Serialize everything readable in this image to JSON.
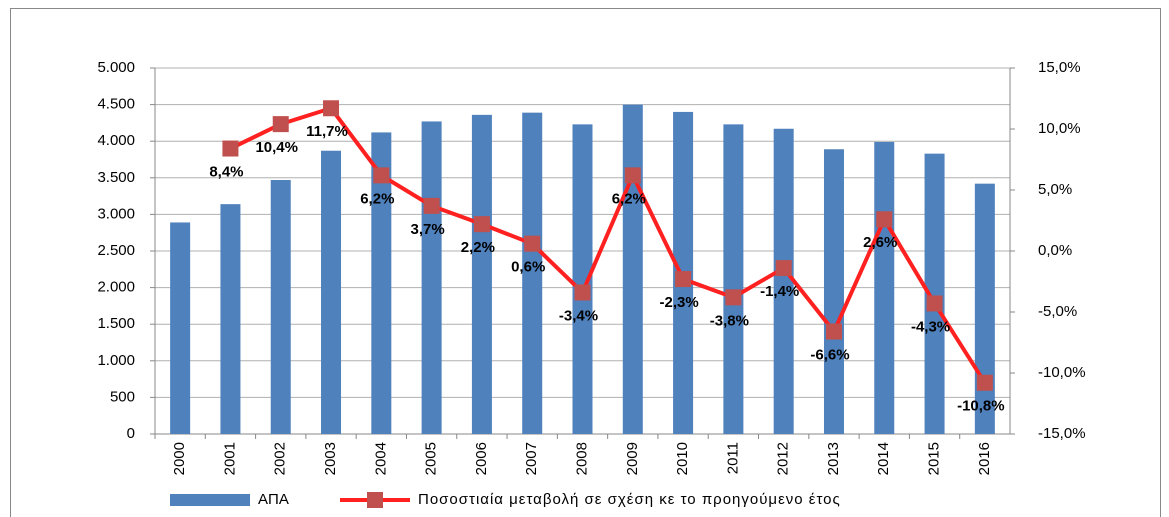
{
  "chart_data": {
    "type": "bar",
    "categories": [
      "2000",
      "2001",
      "2002",
      "2003",
      "2004",
      "2005",
      "2006",
      "2007",
      "2008",
      "2009",
      "2010",
      "2011",
      "2012",
      "2013",
      "2014",
      "2015",
      "2016"
    ],
    "series": [
      {
        "name": "ΑΠΑ",
        "type": "bar",
        "color": "#4f81bd",
        "values": [
          2890,
          3140,
          3470,
          3870,
          4120,
          4270,
          4360,
          4390,
          4230,
          4500,
          4400,
          4230,
          4170,
          3890,
          3990,
          3830,
          3420
        ]
      },
      {
        "name": "Ποσοστιαία μεταβολή σε σχέση κε το προηγούμενο έτος",
        "type": "line",
        "axis": "y2",
        "color": "#ff2020",
        "marker_color": "#c0504d",
        "values": [
          null,
          8.4,
          10.4,
          11.7,
          6.2,
          3.7,
          2.2,
          0.6,
          -3.4,
          6.2,
          -2.3,
          -3.8,
          -1.4,
          -6.6,
          2.6,
          -4.3,
          -10.8
        ],
        "value_labels": [
          null,
          "8,4%",
          "10,4%",
          "11,7%",
          "6,2%",
          "3,7%",
          "2,2%",
          "0,6%",
          "-3,4%",
          "6,2%",
          "-2,3%",
          "-3,8%",
          "-1,4%",
          "-6,6%",
          "2,6%",
          "-4,3%",
          "-10,8%"
        ]
      }
    ],
    "ylim": [
      0,
      5000
    ],
    "yticks": [
      0,
      500,
      {
        "value": 1000,
        "label": "1.000"
      },
      {
        "value": 1500,
        "label": "1.500"
      },
      {
        "value": 2000,
        "label": "2.000"
      },
      {
        "value": 2500,
        "label": "2.500"
      },
      {
        "value": 3000,
        "label": "3.000"
      },
      {
        "value": 3500,
        "label": "3.500"
      },
      {
        "value": 4000,
        "label": "4.000"
      },
      {
        "value": 4500,
        "label": "4.500"
      },
      {
        "value": 5000,
        "label": "5.000"
      }
    ],
    "y2lim": [
      -15,
      15
    ],
    "y2ticks": [
      {
        "value": -15,
        "label": "-15,0%"
      },
      {
        "value": -10,
        "label": "-10,0%"
      },
      {
        "value": -5,
        "label": "-5,0%"
      },
      {
        "value": 0,
        "label": "0,0%"
      },
      {
        "value": 5,
        "label": "5,0%"
      },
      {
        "value": 10,
        "label": "10,0%"
      },
      {
        "value": 15,
        "label": "15,0%"
      }
    ],
    "grid": true,
    "legend": "bottom"
  }
}
